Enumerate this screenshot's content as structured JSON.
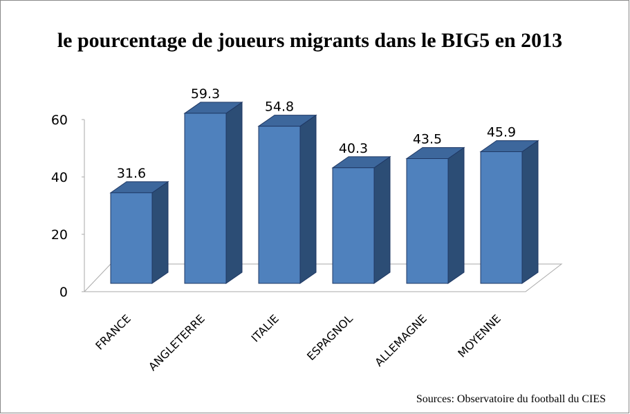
{
  "chart_data": {
    "type": "bar3d",
    "title": "le pourcentage de joueurs migrants dans le BIG5 en 2013",
    "categories": [
      "FRANCE",
      "ANGLETERRE",
      "ITALIE",
      "ESPAGNOL",
      "ALLEMAGNE",
      "MOYENNE"
    ],
    "values": [
      31.6,
      59.3,
      54.8,
      40.3,
      43.5,
      45.9
    ],
    "color": "#4f81bd",
    "ylim": [
      0,
      60
    ],
    "yticks": [
      0,
      20,
      40,
      60
    ],
    "source": "Sources: Observatoire du football du CIES"
  }
}
